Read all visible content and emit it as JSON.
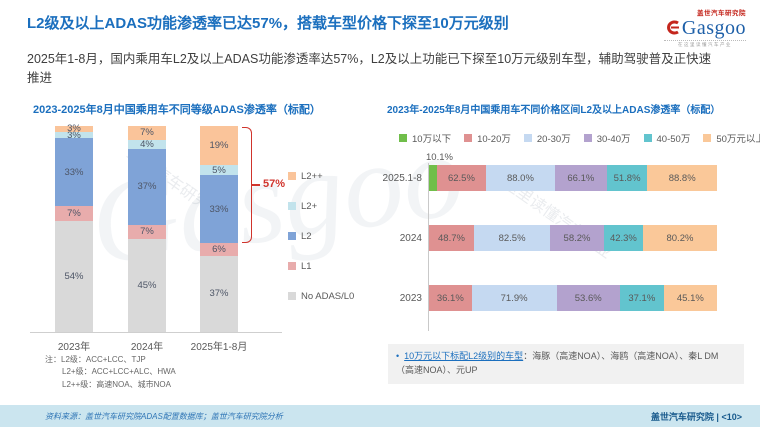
{
  "slide": {
    "title": "L2级及以上ADAS功能渗透率已达57%，搭载车型价格下探至10万元级别",
    "subtitle": "2025年1-8月，国内乘用车L2及以上ADAS功能渗透率达57%，L2及以上功能已下探至10万元级别车型，辅助驾驶普及正快速推进"
  },
  "logo": {
    "cn": "盖世汽车研究院",
    "brand": "Gasgoo",
    "tagline": "在这里读懂汽车产业"
  },
  "chart_data": [
    {
      "type": "bar",
      "stacked": true,
      "unit": "%",
      "title": "2023-2025年8月中国乘用车不同等级ADAS渗透率（标配）",
      "categories": [
        "2023年",
        "2024年",
        "2025年1-8月"
      ],
      "series": [
        {
          "name": "No ADAS/L0",
          "color": "#D9D9D9",
          "values": [
            54,
            45,
            37
          ]
        },
        {
          "name": "L1",
          "color": "#E8ACAC",
          "values": [
            7,
            7,
            6
          ]
        },
        {
          "name": "L2",
          "color": "#7FA3D7",
          "values": [
            33,
            37,
            33
          ]
        },
        {
          "name": "L2+",
          "color": "#C2E3EC",
          "values": [
            3,
            4,
            5
          ]
        },
        {
          "name": "L2++",
          "color": "#FAC49A",
          "values": [
            3,
            7,
            19
          ]
        }
      ],
      "legend_order": [
        "L2++",
        "L2+",
        "L2",
        "L1",
        "No ADAS/L0"
      ],
      "legend_position": "right",
      "annotation": {
        "label": "57%",
        "category": "2025年1-8月",
        "covers": [
          "L2",
          "L2+",
          "L2++"
        ],
        "color": "#D0342C"
      },
      "footnote_prefix": "注：",
      "footnotes": [
        "L2级：ACC+LCC、TJP",
        "L2+级：ACC+LCC+ALC、HWA",
        "L2++级：高速NOA、城市NOA"
      ]
    },
    {
      "type": "bar",
      "orientation": "horizontal",
      "stacked": true,
      "normalized": true,
      "unit": "%",
      "title": "2023年-2025年8月中国乘用车不同价格区间L2及以上ADAS渗透率（标配）",
      "categories": [
        "2025.1-8",
        "2024",
        "2023"
      ],
      "series": [
        {
          "name": "10万以下",
          "color": "#70BE4A",
          "values": [
            10.1,
            null,
            null
          ]
        },
        {
          "name": "10-20万",
          "color": "#DF9191",
          "values": [
            62.5,
            48.7,
            36.1
          ]
        },
        {
          "name": "20-30万",
          "color": "#C5D9F1",
          "values": [
            88.0,
            82.5,
            71.9
          ]
        },
        {
          "name": "30-40万",
          "color": "#B3A2CE",
          "values": [
            66.1,
            58.2,
            53.6
          ]
        },
        {
          "name": "40-50万",
          "color": "#62C4CE",
          "values": [
            51.8,
            42.3,
            37.1
          ]
        },
        {
          "name": "50万元以上",
          "color": "#FAC899",
          "values": [
            88.8,
            80.2,
            45.1
          ]
        }
      ],
      "legend_position": "top",
      "note": {
        "lead": "10万元以下标配L2级别的车型",
        "text": "：海豚（高速NOA）、海鸥（高速NOA）、秦L DM（高速NOA）、元UP"
      }
    }
  ],
  "footer": {
    "source": "资料来源：盖世汽车研究院ADAS配置数据库；盖世汽车研究院分析",
    "org": "盖世汽车研究院",
    "divider": "|",
    "page": "<10>"
  }
}
